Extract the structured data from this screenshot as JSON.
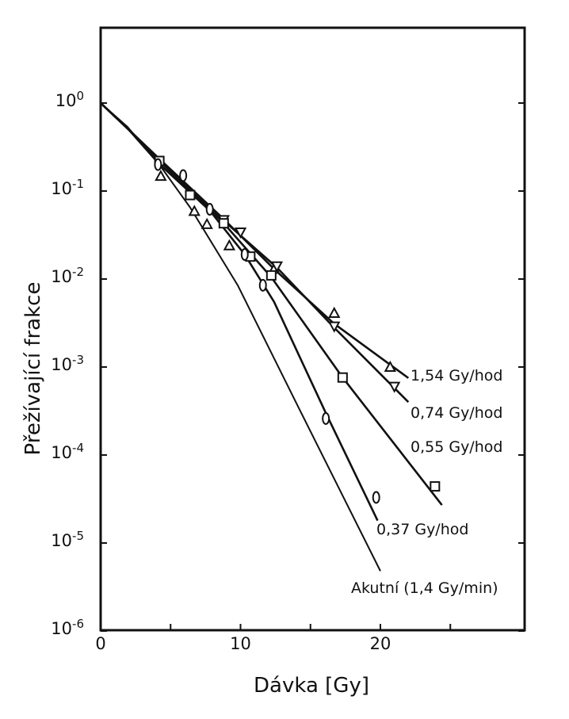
{
  "chart_data": {
    "type": "scatter",
    "title": "",
    "xlabel": "Dávka [Gy]",
    "ylabel": "Přežívající frakce",
    "yscale": "log",
    "xlim": [
      0,
      30
    ],
    "ylim": [
      1e-06,
      7
    ],
    "x_ticks": [
      {
        "v": 0,
        "label": "0"
      },
      {
        "v": 10,
        "label": "10"
      },
      {
        "v": 20,
        "label": "20"
      }
    ],
    "x_minor_ticks": [
      5,
      15,
      25
    ],
    "y_ticks": [
      {
        "v": 1,
        "base": "10",
        "exp": "0"
      },
      {
        "v": 0.1,
        "base": "10",
        "exp": "-1"
      },
      {
        "v": 0.01,
        "base": "10",
        "exp": "-2"
      },
      {
        "v": 0.001,
        "base": "10",
        "exp": "-3"
      },
      {
        "v": 0.0001,
        "base": "10",
        "exp": "-4"
      },
      {
        "v": 1e-05,
        "base": "10",
        "exp": "-5"
      },
      {
        "v": 1e-06,
        "base": "10",
        "exp": "-6"
      }
    ],
    "series": [
      {
        "name": "1,54 Gy/hod",
        "marker": "triangle-up",
        "points": [
          [
            4.3,
            0.148
          ],
          [
            6.7,
            0.059
          ],
          [
            7.6,
            0.042
          ],
          [
            9.2,
            0.024
          ],
          [
            12.4,
            0.013
          ],
          [
            16.7,
            0.0041
          ],
          [
            20.7,
            0.001
          ]
        ],
        "curve": [
          [
            0,
            1
          ],
          [
            2,
            0.5
          ],
          [
            4.1,
            0.24
          ],
          [
            8.8,
            0.048
          ],
          [
            12.4,
            0.013
          ],
          [
            16.7,
            0.0031
          ],
          [
            22,
            0.00075
          ]
        ]
      },
      {
        "name": "0,74 Gy/hod",
        "marker": "triangle-down",
        "points": [
          [
            8.8,
            0.047
          ],
          [
            10,
            0.034
          ],
          [
            12.6,
            0.014
          ],
          [
            16.7,
            0.0029
          ],
          [
            21,
            0.0006
          ]
        ],
        "curve": [
          [
            0,
            1
          ],
          [
            2,
            0.5
          ],
          [
            4.1,
            0.24
          ],
          [
            8.8,
            0.046
          ],
          [
            12.6,
            0.0135
          ],
          [
            16.7,
            0.0028
          ],
          [
            22,
            0.0004
          ]
        ]
      },
      {
        "name": "0,55 Gy/hod",
        "marker": "square",
        "points": [
          [
            4.2,
            0.22
          ],
          [
            6.4,
            0.09
          ],
          [
            8.8,
            0.043
          ],
          [
            10.7,
            0.018
          ],
          [
            12.2,
            0.011
          ],
          [
            17.3,
            0.00076
          ],
          [
            23.9,
            4.4e-05
          ]
        ],
        "curve": [
          [
            0,
            1
          ],
          [
            2,
            0.5
          ],
          [
            4.2,
            0.22
          ],
          [
            8.8,
            0.043
          ],
          [
            12.2,
            0.0105
          ],
          [
            17.3,
            0.00076
          ],
          [
            24.4,
            2.7e-05
          ]
        ]
      },
      {
        "name": "0,37 Gy/hod",
        "marker": "ellipse",
        "points": [
          [
            4.1,
            0.2
          ],
          [
            5.9,
            0.15
          ],
          [
            7.8,
            0.062
          ],
          [
            10.3,
            0.019
          ],
          [
            11.6,
            0.0085
          ],
          [
            16.1,
            0.00026
          ],
          [
            19.7,
            3.3e-05
          ]
        ],
        "curve": [
          [
            0,
            1
          ],
          [
            2,
            0.5
          ],
          [
            4.1,
            0.21
          ],
          [
            7.8,
            0.06
          ],
          [
            10.3,
            0.019
          ],
          [
            12.4,
            0.0055
          ],
          [
            16.1,
            0.0003
          ],
          [
            19.8,
            1.8e-05
          ]
        ]
      },
      {
        "name": "Akutní (1,4 Gy/min)",
        "marker": "none",
        "points": [],
        "curve": [
          [
            0,
            1
          ],
          [
            1.9,
            0.54
          ],
          [
            4.1,
            0.21
          ],
          [
            6.4,
            0.065
          ],
          [
            9.8,
            0.0085
          ],
          [
            14.3,
            0.00031
          ],
          [
            20,
            4.8e-06
          ]
        ]
      }
    ]
  }
}
